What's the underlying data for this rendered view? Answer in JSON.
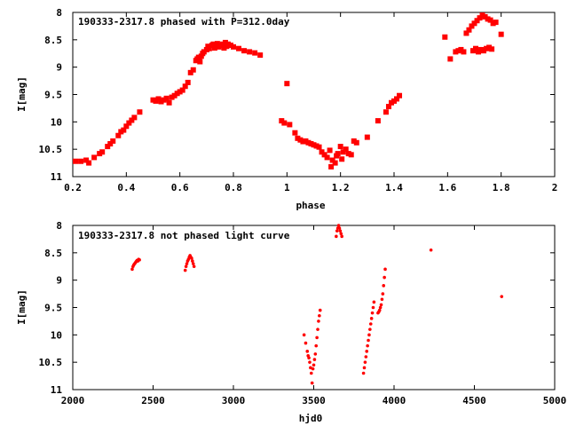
{
  "chart_data": [
    {
      "type": "scatter",
      "title": "190333-2317.8 phased with P=312.0day",
      "xlabel": "phase",
      "ylabel": "I[mag]",
      "xlim": [
        0.2,
        2.0
      ],
      "ylim": [
        8,
        11
      ],
      "y_inverted": true,
      "xticks": [
        0.2,
        0.4,
        0.6,
        0.8,
        1.0,
        1.2,
        1.4,
        1.6,
        1.8,
        2.0
      ],
      "xtick_labels": [
        "0.2",
        "0.4",
        "0.6",
        "0.8",
        "1",
        "1.2",
        "1.4",
        "1.6",
        "1.8",
        "2"
      ],
      "yticks": [
        8,
        8.5,
        9,
        9.5,
        10,
        10.5,
        11
      ],
      "ytick_labels": [
        "8",
        "8.5",
        "9",
        "9.5",
        "10",
        "10.5",
        "11"
      ],
      "grid": false,
      "marker_color": "#ff0000",
      "series": [
        {
          "marker": "square",
          "points": [
            [
              0.21,
              10.72
            ],
            [
              0.23,
              10.72
            ],
            [
              0.25,
              10.7
            ],
            [
              0.26,
              10.75
            ],
            [
              0.28,
              10.65
            ],
            [
              0.3,
              10.58
            ],
            [
              0.31,
              10.55
            ],
            [
              0.33,
              10.45
            ],
            [
              0.34,
              10.4
            ],
            [
              0.35,
              10.35
            ],
            [
              0.37,
              10.25
            ],
            [
              0.38,
              10.18
            ],
            [
              0.39,
              10.15
            ],
            [
              0.4,
              10.08
            ],
            [
              0.41,
              10.02
            ],
            [
              0.42,
              9.97
            ],
            [
              0.43,
              9.92
            ],
            [
              0.45,
              9.82
            ],
            [
              0.5,
              9.6
            ],
            [
              0.51,
              9.62
            ],
            [
              0.52,
              9.58
            ],
            [
              0.53,
              9.63
            ],
            [
              0.54,
              9.6
            ],
            [
              0.55,
              9.57
            ],
            [
              0.56,
              9.65
            ],
            [
              0.57,
              9.55
            ],
            [
              0.58,
              9.52
            ],
            [
              0.59,
              9.48
            ],
            [
              0.6,
              9.45
            ],
            [
              0.61,
              9.42
            ],
            [
              0.62,
              9.35
            ],
            [
              0.63,
              9.28
            ],
            [
              0.64,
              9.1
            ],
            [
              0.65,
              9.05
            ],
            [
              0.66,
              8.88
            ],
            [
              0.665,
              8.85
            ],
            [
              0.67,
              8.82
            ],
            [
              0.675,
              8.9
            ],
            [
              0.68,
              8.8
            ],
            [
              0.685,
              8.75
            ],
            [
              0.69,
              8.72
            ],
            [
              0.7,
              8.68
            ],
            [
              0.705,
              8.62
            ],
            [
              0.71,
              8.66
            ],
            [
              0.72,
              8.6
            ],
            [
              0.725,
              8.58
            ],
            [
              0.73,
              8.65
            ],
            [
              0.735,
              8.62
            ],
            [
              0.74,
              8.57
            ],
            [
              0.745,
              8.63
            ],
            [
              0.75,
              8.6
            ],
            [
              0.76,
              8.58
            ],
            [
              0.765,
              8.65
            ],
            [
              0.77,
              8.55
            ],
            [
              0.775,
              8.62
            ],
            [
              0.78,
              8.58
            ],
            [
              0.79,
              8.6
            ],
            [
              0.8,
              8.63
            ],
            [
              0.82,
              8.66
            ],
            [
              0.84,
              8.7
            ],
            [
              0.86,
              8.72
            ],
            [
              0.88,
              8.74
            ],
            [
              0.9,
              8.78
            ],
            [
              0.98,
              9.98
            ],
            [
              0.99,
              10.02
            ],
            [
              1.0,
              9.3
            ],
            [
              1.01,
              10.05
            ],
            [
              1.03,
              10.2
            ],
            [
              1.04,
              10.3
            ],
            [
              1.05,
              10.33
            ],
            [
              1.06,
              10.36
            ],
            [
              1.07,
              10.35
            ],
            [
              1.08,
              10.38
            ],
            [
              1.09,
              10.4
            ],
            [
              1.1,
              10.42
            ],
            [
              1.11,
              10.44
            ],
            [
              1.12,
              10.46
            ],
            [
              1.13,
              10.55
            ],
            [
              1.14,
              10.6
            ],
            [
              1.15,
              10.65
            ],
            [
              1.16,
              10.52
            ],
            [
              1.165,
              10.82
            ],
            [
              1.17,
              10.7
            ],
            [
              1.18,
              10.75
            ],
            [
              1.185,
              10.62
            ],
            [
              1.19,
              10.58
            ],
            [
              1.2,
              10.45
            ],
            [
              1.205,
              10.68
            ],
            [
              1.21,
              10.55
            ],
            [
              1.22,
              10.5
            ],
            [
              1.23,
              10.58
            ],
            [
              1.24,
              10.6
            ],
            [
              1.25,
              10.35
            ],
            [
              1.26,
              10.38
            ],
            [
              1.3,
              10.28
            ],
            [
              1.34,
              9.98
            ],
            [
              1.37,
              9.82
            ],
            [
              1.38,
              9.72
            ],
            [
              1.39,
              9.65
            ],
            [
              1.4,
              9.62
            ],
            [
              1.41,
              9.58
            ],
            [
              1.42,
              9.52
            ],
            [
              1.59,
              8.45
            ],
            [
              1.61,
              8.85
            ],
            [
              1.63,
              8.72
            ],
            [
              1.64,
              8.7
            ],
            [
              1.65,
              8.68
            ],
            [
              1.66,
              8.72
            ],
            [
              1.67,
              8.38
            ],
            [
              1.68,
              8.32
            ],
            [
              1.69,
              8.25
            ],
            [
              1.7,
              8.2
            ],
            [
              1.71,
              8.15
            ],
            [
              1.72,
              8.1
            ],
            [
              1.73,
              8.05
            ],
            [
              1.74,
              8.08
            ],
            [
              1.75,
              8.12
            ],
            [
              1.76,
              8.14
            ],
            [
              1.77,
              8.2
            ],
            [
              1.78,
              8.18
            ],
            [
              1.8,
              8.4
            ],
            [
              1.695,
              8.7
            ],
            [
              1.705,
              8.66
            ],
            [
              1.715,
              8.72
            ],
            [
              1.725,
              8.68
            ],
            [
              1.735,
              8.7
            ],
            [
              1.745,
              8.66
            ],
            [
              1.755,
              8.64
            ],
            [
              1.765,
              8.67
            ]
          ]
        }
      ]
    },
    {
      "type": "scatter",
      "title": "190333-2317.8 not phased light curve",
      "xlabel": "hjd0",
      "ylabel": "I[mag]",
      "xlim": [
        2000,
        5000
      ],
      "ylim": [
        8,
        11
      ],
      "y_inverted": true,
      "xticks": [
        2000,
        2500,
        3000,
        3500,
        4000,
        4500,
        5000
      ],
      "xtick_labels": [
        "2000",
        "2500",
        "3000",
        "3500",
        "4000",
        "4500",
        "5000"
      ],
      "yticks": [
        8,
        8.5,
        9,
        9.5,
        10,
        10.5,
        11
      ],
      "ytick_labels": [
        "8",
        "8.5",
        "9",
        "9.5",
        "10",
        "10.5",
        "11"
      ],
      "grid": false,
      "marker_color": "#ff0000",
      "series": [
        {
          "marker": "dot",
          "points": [
            [
              2370,
              8.8
            ],
            [
              2375,
              8.75
            ],
            [
              2380,
              8.72
            ],
            [
              2385,
              8.7
            ],
            [
              2390,
              8.68
            ],
            [
              2395,
              8.66
            ],
            [
              2400,
              8.64
            ],
            [
              2405,
              8.65
            ],
            [
              2410,
              8.62
            ],
            [
              2415,
              8.63
            ],
            [
              2700,
              8.82
            ],
            [
              2705,
              8.75
            ],
            [
              2710,
              8.7
            ],
            [
              2715,
              8.65
            ],
            [
              2720,
              8.62
            ],
            [
              2725,
              8.58
            ],
            [
              2730,
              8.55
            ],
            [
              2735,
              8.58
            ],
            [
              2740,
              8.6
            ],
            [
              2745,
              8.65
            ],
            [
              2750,
              8.7
            ],
            [
              2755,
              8.75
            ],
            [
              3440,
              10.0
            ],
            [
              3450,
              10.15
            ],
            [
              3460,
              10.3
            ],
            [
              3465,
              10.38
            ],
            [
              3470,
              10.42
            ],
            [
              3475,
              10.5
            ],
            [
              3480,
              10.6
            ],
            [
              3485,
              10.7
            ],
            [
              3490,
              10.88
            ],
            [
              3495,
              10.62
            ],
            [
              3500,
              10.55
            ],
            [
              3505,
              10.45
            ],
            [
              3510,
              10.35
            ],
            [
              3515,
              10.2
            ],
            [
              3520,
              10.05
            ],
            [
              3525,
              9.9
            ],
            [
              3530,
              9.75
            ],
            [
              3535,
              9.65
            ],
            [
              3540,
              9.55
            ],
            [
              3640,
              8.2
            ],
            [
              3645,
              8.1
            ],
            [
              3650,
              8.05
            ],
            [
              3655,
              8.0
            ],
            [
              3660,
              8.05
            ],
            [
              3665,
              8.1
            ],
            [
              3670,
              8.15
            ],
            [
              3675,
              8.2
            ],
            [
              3810,
              10.7
            ],
            [
              3815,
              10.6
            ],
            [
              3820,
              10.5
            ],
            [
              3825,
              10.4
            ],
            [
              3830,
              10.3
            ],
            [
              3835,
              10.2
            ],
            [
              3840,
              10.1
            ],
            [
              3845,
              10.0
            ],
            [
              3850,
              9.9
            ],
            [
              3855,
              9.8
            ],
            [
              3860,
              9.7
            ],
            [
              3865,
              9.6
            ],
            [
              3870,
              9.5
            ],
            [
              3875,
              9.4
            ],
            [
              3900,
              9.6
            ],
            [
              3905,
              9.58
            ],
            [
              3910,
              9.55
            ],
            [
              3915,
              9.5
            ],
            [
              3920,
              9.45
            ],
            [
              3925,
              9.35
            ],
            [
              3930,
              9.25
            ],
            [
              3935,
              9.1
            ],
            [
              3940,
              8.95
            ],
            [
              3945,
              8.8
            ],
            [
              4230,
              8.45
            ],
            [
              4670,
              9.3
            ]
          ]
        }
      ]
    }
  ]
}
